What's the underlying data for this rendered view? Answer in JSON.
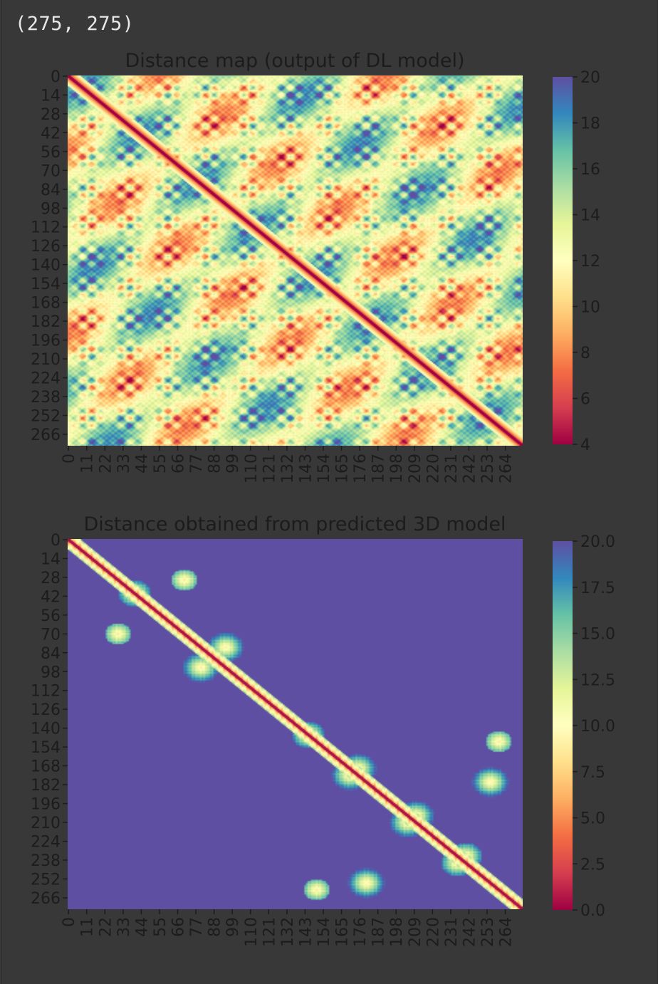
{
  "output": {
    "shape_text": "(275, 275)"
  },
  "colors": {
    "background": "#383838",
    "text": "#1c1c1c",
    "spectral": [
      "#9e0142",
      "#d53e4f",
      "#f46d43",
      "#fdae61",
      "#fee08b",
      "#ffffbf",
      "#e6f598",
      "#abdda4",
      "#66c2a5",
      "#3288bd",
      "#5e4fa2"
    ]
  },
  "chart_data": [
    {
      "type": "heatmap",
      "title": "Distance map (output of DL model)",
      "colormap": "Spectral",
      "size": 275,
      "xlabel": "",
      "ylabel": "",
      "x_ticks": [
        "0",
        "11",
        "22",
        "33",
        "44",
        "55",
        "66",
        "77",
        "88",
        "99",
        "110",
        "121",
        "132",
        "143",
        "154",
        "165",
        "176",
        "187",
        "198",
        "209",
        "220",
        "231",
        "242",
        "253",
        "264"
      ],
      "y_ticks": [
        "0",
        "14",
        "28",
        "42",
        "56",
        "70",
        "84",
        "98",
        "112",
        "126",
        "140",
        "154",
        "168",
        "182",
        "196",
        "210",
        "224",
        "238",
        "252",
        "266"
      ],
      "colorbar": {
        "min": 4,
        "max": 20,
        "ticks": [
          "4",
          "6",
          "8",
          "10",
          "12",
          "14",
          "16",
          "18",
          "20"
        ]
      }
    },
    {
      "type": "heatmap",
      "title": "Distance obtained from predicted 3D model",
      "colormap": "Spectral",
      "size": 275,
      "xlabel": "",
      "ylabel": "",
      "x_ticks": [
        "0",
        "11",
        "22",
        "33",
        "44",
        "55",
        "66",
        "77",
        "88",
        "99",
        "110",
        "121",
        "132",
        "143",
        "154",
        "165",
        "176",
        "187",
        "198",
        "209",
        "220",
        "231",
        "242",
        "253",
        "264"
      ],
      "y_ticks": [
        "0",
        "14",
        "28",
        "42",
        "56",
        "70",
        "84",
        "98",
        "112",
        "126",
        "140",
        "154",
        "168",
        "182",
        "196",
        "210",
        "224",
        "238",
        "252",
        "266"
      ],
      "colorbar": {
        "min": 0.0,
        "max": 20.0,
        "ticks": [
          "0.0",
          "2.5",
          "5.0",
          "7.5",
          "10.0",
          "12.5",
          "15.0",
          "17.5",
          "20.0"
        ]
      }
    }
  ]
}
